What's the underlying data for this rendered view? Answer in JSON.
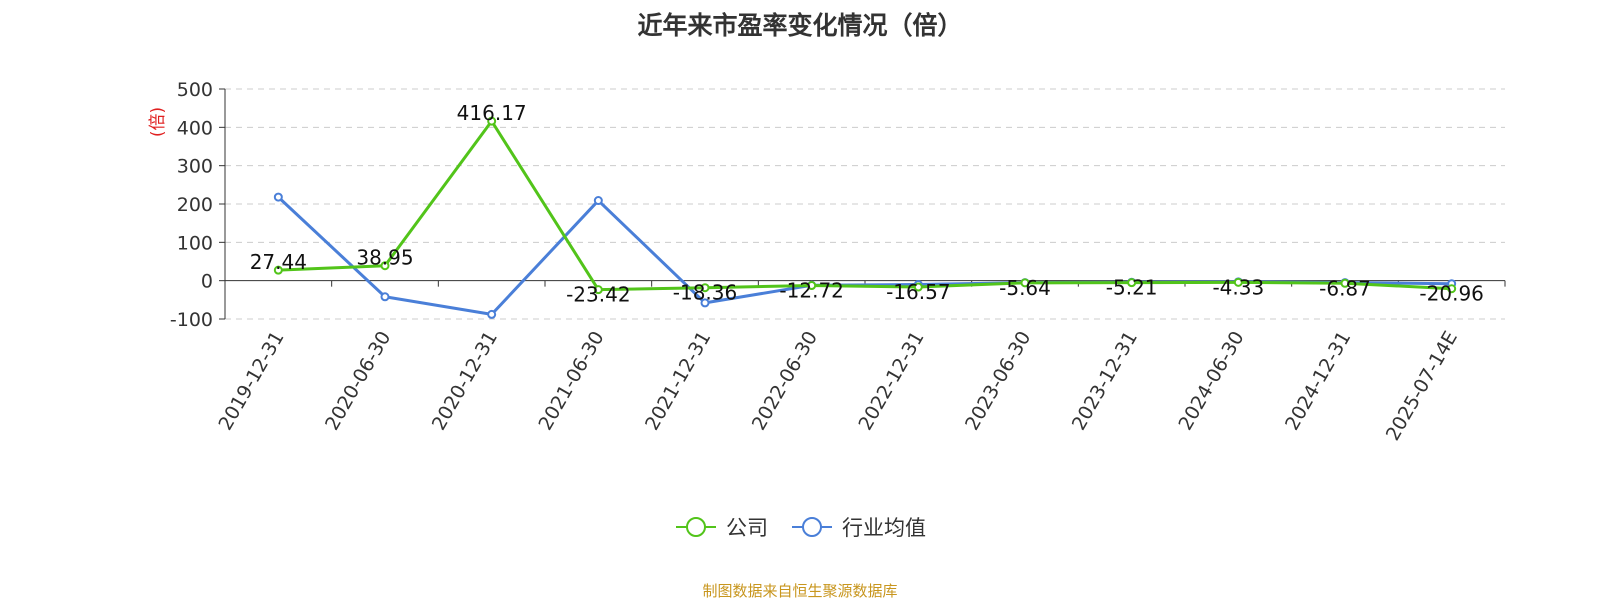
{
  "chart_data": {
    "type": "line",
    "title": "近年来市盈率变化情况（倍）",
    "ylabel": "(倍)",
    "xlabel": "",
    "ylim": [
      -100,
      500
    ],
    "yticks": [
      500,
      400,
      300,
      200,
      100,
      0,
      -100
    ],
    "grid": true,
    "legend_position": "bottom",
    "categories": [
      "2019-12-31",
      "2020-06-30",
      "2020-12-31",
      "2021-06-30",
      "2021-12-31",
      "2022-06-30",
      "2022-12-31",
      "2023-06-30",
      "2023-12-31",
      "2024-06-30",
      "2024-12-31",
      "2025-07-14E"
    ],
    "series": [
      {
        "name": "公司",
        "color": "#52c41a",
        "values": [
          27.44,
          38.95,
          416.17,
          -23.42,
          -18.36,
          -12.72,
          -16.57,
          -5.64,
          -5.21,
          -4.33,
          -6.87,
          -20.96
        ],
        "labels": [
          "27.44",
          "38.95",
          "416.17",
          "-23.42",
          "-18.36",
          "-12.72",
          "-16.57",
          "-5.64",
          "-5.21",
          "-4.33",
          "-6.87",
          "-20.96"
        ]
      },
      {
        "name": "行业均值",
        "color": "#4a7fd8",
        "values": [
          218,
          -42,
          -88,
          209,
          -58,
          -12,
          -10,
          -5,
          -4,
          -3,
          -5,
          -8
        ]
      }
    ]
  },
  "source": "制图数据来自恒生聚源数据库",
  "colors": {
    "ylabel": "#e02020",
    "source": "#c8961e",
    "axis": "#333333",
    "grid": "#cccccc"
  }
}
